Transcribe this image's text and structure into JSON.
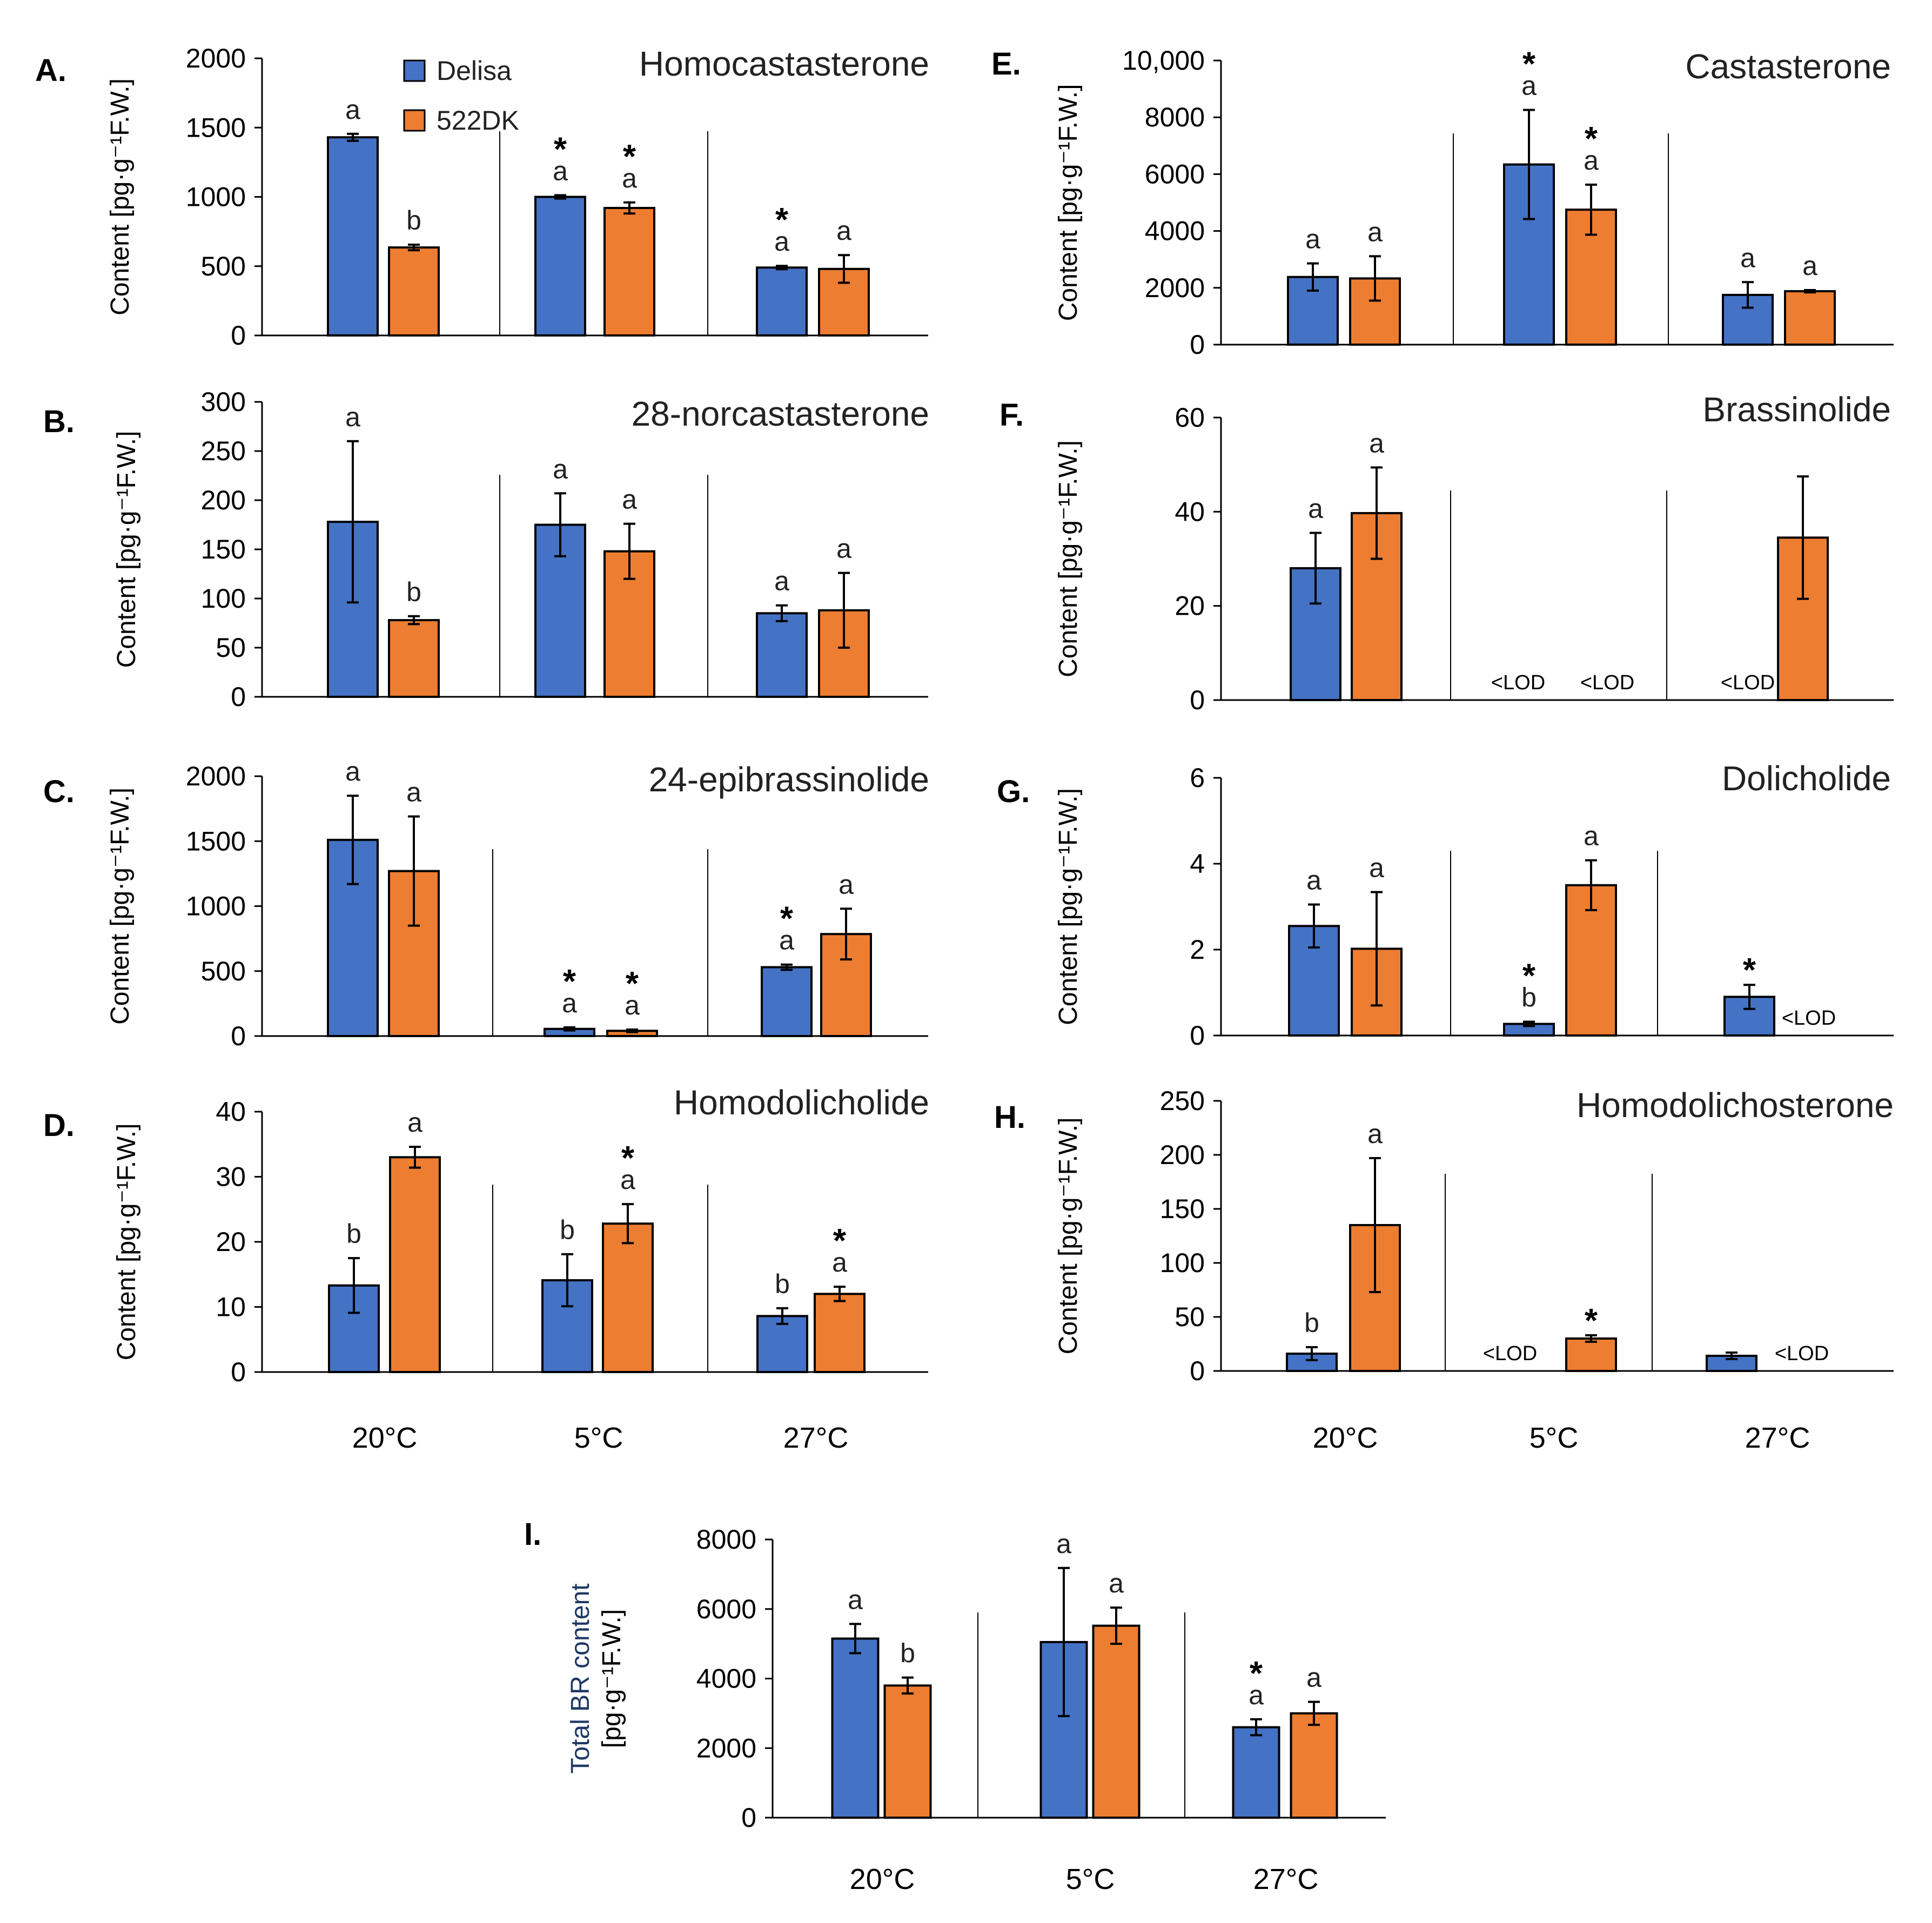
{
  "groups": [
    "20°C",
    "5°C",
    "27°C"
  ],
  "legend": [
    {
      "name": "Delisa",
      "color": "#4472c4"
    },
    {
      "name": "522DK",
      "color": "#ed7d31"
    }
  ],
  "ylabel_default": "Content [pg·g⁻¹F.W.]",
  "ylabel_total_line1": "Total BR content",
  "ylabel_total_line2": "[pg·g⁻¹F.W.]",
  "lod_label": "<LOD",
  "chart_data": [
    {
      "id": "A",
      "type": "bar",
      "letter": "A.",
      "title": "Homocastasterone",
      "categories": [
        "20°C",
        "5°C",
        "27°C"
      ],
      "ylim": [
        0,
        2000
      ],
      "ticks": [
        0,
        500,
        1000,
        1500,
        2000
      ],
      "series": [
        {
          "name": "Delisa",
          "values": [
            1430,
            1000,
            490
          ],
          "errors": [
            25,
            12,
            12
          ],
          "letters": [
            "a",
            "a",
            "a"
          ],
          "stars": [
            false,
            true,
            true
          ]
        },
        {
          "name": "522DK",
          "values": [
            635,
            920,
            480
          ],
          "errors": [
            20,
            40,
            100
          ],
          "letters": [
            "b",
            "a",
            "a"
          ],
          "stars": [
            false,
            true,
            false
          ]
        }
      ]
    },
    {
      "id": "B",
      "type": "bar",
      "letter": "B.",
      "title": "28-norcastasterone",
      "categories": [
        "20°C",
        "5°C",
        "27°C"
      ],
      "ylim": [
        0,
        300
      ],
      "ticks": [
        0,
        50,
        100,
        150,
        200,
        250,
        300
      ],
      "series": [
        {
          "name": "Delisa",
          "values": [
            178,
            175,
            85
          ],
          "errors": [
            82,
            32,
            8
          ],
          "letters": [
            "a",
            "a",
            "a"
          ],
          "stars": [
            false,
            false,
            false
          ]
        },
        {
          "name": "522DK",
          "values": [
            78,
            148,
            88
          ],
          "errors": [
            4,
            28,
            38
          ],
          "letters": [
            "b",
            "a",
            "a"
          ],
          "stars": [
            false,
            false,
            false
          ]
        }
      ]
    },
    {
      "id": "C",
      "type": "bar",
      "letter": "C.",
      "title": "24-epibrassinolide",
      "categories": [
        "20°C",
        "5°C",
        "27°C"
      ],
      "ylim": [
        0,
        2000
      ],
      "ticks": [
        0,
        500,
        1000,
        1500,
        2000
      ],
      "series": [
        {
          "name": "Delisa",
          "values": [
            1510,
            55,
            530
          ],
          "errors": [
            340,
            12,
            20
          ],
          "letters": [
            "a",
            "a",
            "a"
          ],
          "stars": [
            false,
            true,
            true
          ]
        },
        {
          "name": "522DK",
          "values": [
            1270,
            40,
            785
          ],
          "errors": [
            420,
            10,
            195
          ],
          "letters": [
            "a",
            "a",
            "a"
          ],
          "stars": [
            false,
            true,
            false
          ]
        }
      ]
    },
    {
      "id": "D",
      "type": "bar",
      "letter": "D.",
      "title": "Homodolicholide",
      "categories": [
        "20°C",
        "5°C",
        "27°C"
      ],
      "ylim": [
        0,
        40
      ],
      "ticks": [
        0,
        10,
        20,
        30,
        40
      ],
      "series": [
        {
          "name": "Delisa",
          "values": [
            13.3,
            14.1,
            8.6
          ],
          "errors": [
            4.2,
            4.0,
            1.2
          ],
          "letters": [
            "b",
            "b",
            "b"
          ],
          "stars": [
            false,
            false,
            false
          ]
        },
        {
          "name": "522DK",
          "values": [
            33.0,
            22.8,
            12.0
          ],
          "errors": [
            1.6,
            3.0,
            1.1
          ],
          "letters": [
            "a",
            "a",
            "a"
          ],
          "stars": [
            false,
            true,
            true
          ]
        }
      ]
    },
    {
      "id": "E",
      "type": "bar",
      "letter": "E.",
      "title": "Castasterone",
      "categories": [
        "20°C",
        "5°C",
        "27°C"
      ],
      "ylim": [
        0,
        10000
      ],
      "ticks": [
        0,
        2000,
        4000,
        6000,
        8000,
        10000
      ],
      "tick_labels": [
        "0",
        "2000",
        "4000",
        "6000",
        "8000",
        "10,000"
      ],
      "series": [
        {
          "name": "Delisa",
          "values": [
            2380,
            6340,
            1750
          ],
          "errors": [
            480,
            1920,
            450
          ],
          "letters": [
            "a",
            "a",
            "a"
          ],
          "stars": [
            false,
            true,
            false
          ]
        },
        {
          "name": "522DK",
          "values": [
            2330,
            4750,
            1880
          ],
          "errors": [
            780,
            880,
            40
          ],
          "letters": [
            "a",
            "a",
            "a"
          ],
          "stars": [
            false,
            true,
            false
          ]
        }
      ]
    },
    {
      "id": "F",
      "type": "bar",
      "letter": "F.",
      "title": "Brassinolide",
      "categories": [
        "20°C",
        "5°C",
        "27°C"
      ],
      "ylim": [
        0,
        60
      ],
      "ticks": [
        0,
        20,
        40,
        60
      ],
      "series": [
        {
          "name": "Delisa",
          "values": [
            28.0,
            null,
            null
          ],
          "errors": [
            7.5,
            null,
            null
          ],
          "letters": [
            "a",
            "",
            ""
          ],
          "stars": [
            false,
            false,
            false
          ]
        },
        {
          "name": "522DK",
          "values": [
            39.7,
            null,
            34.5
          ],
          "errors": [
            9.7,
            null,
            13.0
          ],
          "letters": [
            "a",
            "",
            ""
          ],
          "stars": [
            false,
            false,
            false
          ]
        }
      ]
    },
    {
      "id": "G",
      "type": "bar",
      "letter": "G.",
      "title": "Dolicholide",
      "categories": [
        "20°C",
        "5°C",
        "27°C"
      ],
      "ylim": [
        0,
        6
      ],
      "ticks": [
        0,
        2,
        4,
        6
      ],
      "series": [
        {
          "name": "Delisa",
          "values": [
            2.55,
            0.27,
            0.9
          ],
          "errors": [
            0.5,
            0.05,
            0.28
          ],
          "letters": [
            "a",
            "b",
            ""
          ],
          "stars": [
            false,
            true,
            true
          ]
        },
        {
          "name": "522DK",
          "values": [
            2.02,
            3.5,
            null
          ],
          "errors": [
            1.32,
            0.58,
            null
          ],
          "letters": [
            "a",
            "a",
            ""
          ],
          "stars": [
            false,
            false,
            false
          ]
        }
      ]
    },
    {
      "id": "H",
      "type": "bar",
      "letter": "H.",
      "title": "Homodolichosterone",
      "categories": [
        "20°C",
        "5°C",
        "27°C"
      ],
      "ylim": [
        0,
        250
      ],
      "ticks": [
        0,
        50,
        100,
        150,
        200,
        250
      ],
      "series": [
        {
          "name": "Delisa",
          "values": [
            16,
            null,
            14
          ],
          "errors": [
            6,
            null,
            3
          ],
          "letters": [
            "b",
            "",
            ""
          ],
          "stars": [
            false,
            false,
            false
          ]
        },
        {
          "name": "522DK",
          "values": [
            135,
            30,
            null
          ],
          "errors": [
            62,
            3,
            null
          ],
          "letters": [
            "a",
            "",
            ""
          ],
          "stars": [
            false,
            true,
            false
          ]
        }
      ]
    },
    {
      "id": "I",
      "type": "bar",
      "letter": "I.",
      "title": "",
      "categories": [
        "20°C",
        "5°C",
        "27°C"
      ],
      "ylim": [
        0,
        8000
      ],
      "ticks": [
        0,
        2000,
        4000,
        6000,
        8000
      ],
      "series": [
        {
          "name": "Delisa",
          "values": [
            5150,
            5050,
            2600
          ],
          "errors": [
            420,
            2130,
            230
          ],
          "letters": [
            "a",
            "a",
            "a"
          ],
          "stars": [
            false,
            false,
            true
          ]
        },
        {
          "name": "522DK",
          "values": [
            3800,
            5520,
            3000
          ],
          "errors": [
            230,
            520,
            330
          ],
          "letters": [
            "b",
            "a",
            "a"
          ],
          "stars": [
            false,
            false,
            false
          ]
        }
      ]
    }
  ]
}
